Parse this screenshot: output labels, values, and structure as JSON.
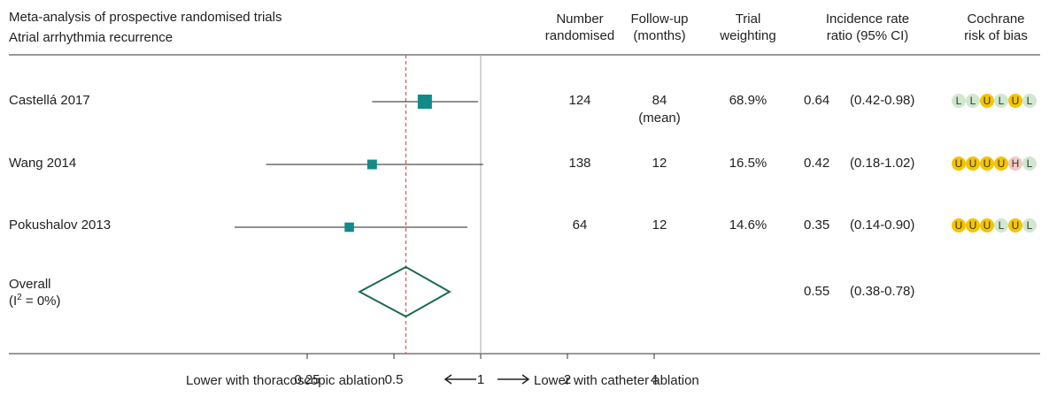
{
  "header": {
    "title_line1": "Meta-analysis of prospective randomised trials",
    "title_line2": "Atrial arrhythmia recurrence",
    "col_number": [
      "Number",
      "randomised"
    ],
    "col_followup": [
      "Follow-up",
      "(months)"
    ],
    "col_weight": [
      "Trial",
      "weighting"
    ],
    "col_irr": [
      "Incidence rate",
      "ratio (95% CI)"
    ],
    "col_bias": [
      "Cochrane",
      "risk of bias"
    ]
  },
  "bias_colors": {
    "L": "#cfe8cf",
    "U": "#f5c400",
    "H": "#f3c9c4"
  },
  "chart_data": {
    "type": "forest",
    "x_scale": "log",
    "xlim": [
      0.125,
      5.6
    ],
    "x_ticks": [
      0.25,
      0.5,
      1,
      2,
      4
    ],
    "x_tick_labels": [
      "0.25",
      "0.5",
      "1",
      "2",
      "4"
    ],
    "reference_line": 1,
    "pooled_line": 0.55,
    "marker_color": "#138a8a",
    "diamond_color": "#1a6b4a",
    "pooled_line_color": "#e05a6a",
    "studies": [
      {
        "name": "Castellá 2017",
        "estimate": 0.64,
        "lower": 0.42,
        "upper": 0.98,
        "weight_value": 68.9,
        "randomised": "124",
        "followup": "84",
        "followup_note": "(mean)",
        "weight": "68.9%",
        "irr": "0.64",
        "ci": "(0.42-0.98)",
        "bias": [
          "L",
          "L",
          "U",
          "L",
          "U",
          "L"
        ]
      },
      {
        "name": "Wang 2014",
        "estimate": 0.42,
        "lower": 0.18,
        "upper": 1.02,
        "weight_value": 16.5,
        "randomised": "138",
        "followup": "12",
        "followup_note": "",
        "weight": "16.5%",
        "irr": "0.42",
        "ci": "(0.18-1.02)",
        "bias": [
          "U",
          "U",
          "U",
          "U",
          "H",
          "L"
        ]
      },
      {
        "name": "Pokushalov 2013",
        "estimate": 0.35,
        "lower": 0.14,
        "upper": 0.9,
        "weight_value": 14.6,
        "randomised": "64",
        "followup": "12",
        "followup_note": "",
        "weight": "14.6%",
        "irr": "0.35",
        "ci": "(0.14-0.90)",
        "bias": [
          "U",
          "U",
          "U",
          "L",
          "U",
          "L"
        ]
      }
    ],
    "overall": {
      "label": "Overall",
      "i2_prefix": "(I",
      "i2_sup": "2",
      "i2_suffix": " = 0%)",
      "estimate": 0.55,
      "lower": 0.38,
      "upper": 0.78,
      "irr": "0.55",
      "ci": "(0.38-0.78)"
    },
    "direction_left": "Lower with thoracoscopic ablation",
    "direction_right": "Lower with catheter ablation"
  }
}
